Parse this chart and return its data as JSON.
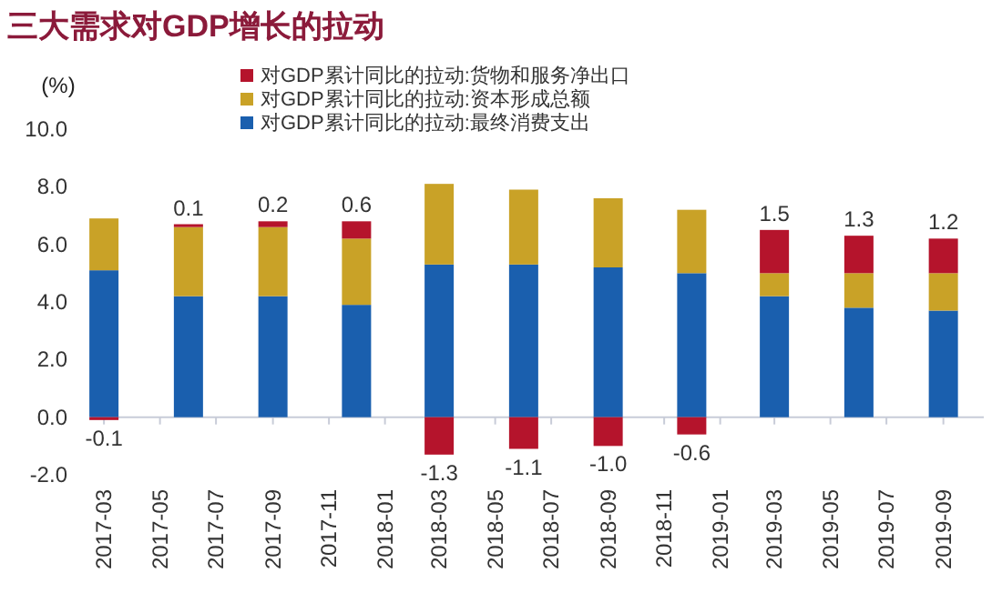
{
  "chart_data": {
    "type": "bar",
    "title": "三大需求对GDP增长的拉动",
    "ylabel": "(%)",
    "stacked": true,
    "x": [
      "2017-03",
      "2017-06",
      "2017-09",
      "2017-12",
      "2018-03",
      "2018-06",
      "2018-09",
      "2018-12",
      "2019-03",
      "2019-06",
      "2019-09"
    ],
    "series": [
      {
        "name": "对GDP累计同比的拉动:最终消费支出",
        "color": "#1a5fae",
        "values": [
          5.1,
          4.2,
          4.2,
          3.9,
          5.3,
          5.3,
          5.2,
          5.0,
          4.2,
          3.8,
          3.7
        ]
      },
      {
        "name": "对GDP累计同比的拉动:资本形成总额",
        "color": "#c9a227",
        "values": [
          1.8,
          2.4,
          2.4,
          2.3,
          2.8,
          2.6,
          2.4,
          2.2,
          0.8,
          1.2,
          1.3
        ]
      },
      {
        "name": "对GDP累计同比的拉动:货物和服务净出口",
        "color": "#b5142c",
        "values": [
          -0.1,
          0.1,
          0.2,
          0.6,
          -1.3,
          -1.1,
          -1.0,
          -0.6,
          1.5,
          1.3,
          1.2
        ],
        "value_labels": [
          "-0.1",
          "0.1",
          "0.2",
          "0.6",
          "-1.3",
          "-1.1",
          "-1.0",
          "-0.6",
          "1.5",
          "1.3",
          "1.2"
        ]
      }
    ],
    "xlim": [
      "2017-02-15",
      "2019-10-15"
    ],
    "xticks": [
      "2017-03",
      "2017-05",
      "2017-07",
      "2017-09",
      "2017-11",
      "2018-01",
      "2018-03",
      "2018-05",
      "2018-07",
      "2018-09",
      "2018-11",
      "2019-01",
      "2019-03",
      "2019-05",
      "2019-07",
      "2019-09"
    ],
    "ylim": [
      -2,
      10
    ],
    "yticks": [
      {
        "value": -2,
        "label": "-2.0"
      },
      {
        "value": 0,
        "label": "0.0"
      },
      {
        "value": 2,
        "label": "2.0"
      },
      {
        "value": 4,
        "label": "4.0"
      },
      {
        "value": 6,
        "label": "6.0"
      },
      {
        "value": 8,
        "label": "8.0"
      },
      {
        "value": 10,
        "label": "10.0"
      }
    ],
    "legend": "top"
  }
}
